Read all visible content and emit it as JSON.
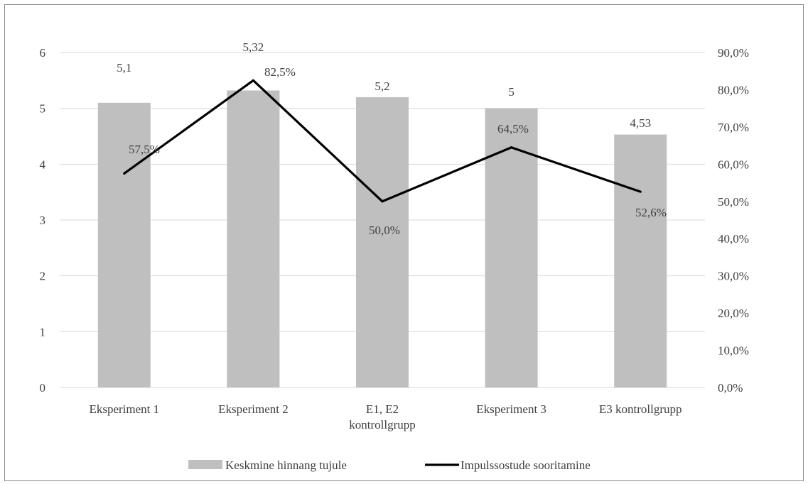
{
  "chart_data": {
    "type": "bar",
    "categories": [
      [
        "Eksperiment 1"
      ],
      [
        "Eksperiment 2"
      ],
      [
        "E1, E2",
        "kontrollgrupp"
      ],
      [
        "Eksperiment 3"
      ],
      [
        "E3 kontrollgrupp"
      ]
    ],
    "series": [
      {
        "name": "Keskmine hinnang tujule",
        "type": "bar",
        "axis": "left",
        "color": "#bfbfbf",
        "values": [
          5.1,
          5.32,
          5.2,
          5,
          4.53
        ],
        "labels": [
          "5,1",
          "5,32",
          "5,2",
          "5",
          "4,53"
        ]
      },
      {
        "name": "Impulssostude sooritamine",
        "type": "line",
        "axis": "right",
        "color": "#000000",
        "values": [
          57.5,
          82.5,
          50.0,
          64.5,
          52.6
        ],
        "labels": [
          "57,5%",
          "82,5%",
          "50,0%",
          "64,5%",
          "52,6%"
        ]
      }
    ],
    "y_left": {
      "ylim": [
        0,
        6
      ],
      "ticks": [
        "0",
        "1",
        "2",
        "3",
        "4",
        "5",
        "6"
      ]
    },
    "y_right": {
      "ylim": [
        0,
        90
      ],
      "ticks": [
        "0,0%",
        "10,0%",
        "20,0%",
        "30,0%",
        "40,0%",
        "50,0%",
        "60,0%",
        "70,0%",
        "80,0%",
        "90,0%"
      ]
    },
    "grid": "horizontal",
    "legend_position": "bottom",
    "title": "",
    "xlabel": "",
    "ylabel": ""
  }
}
